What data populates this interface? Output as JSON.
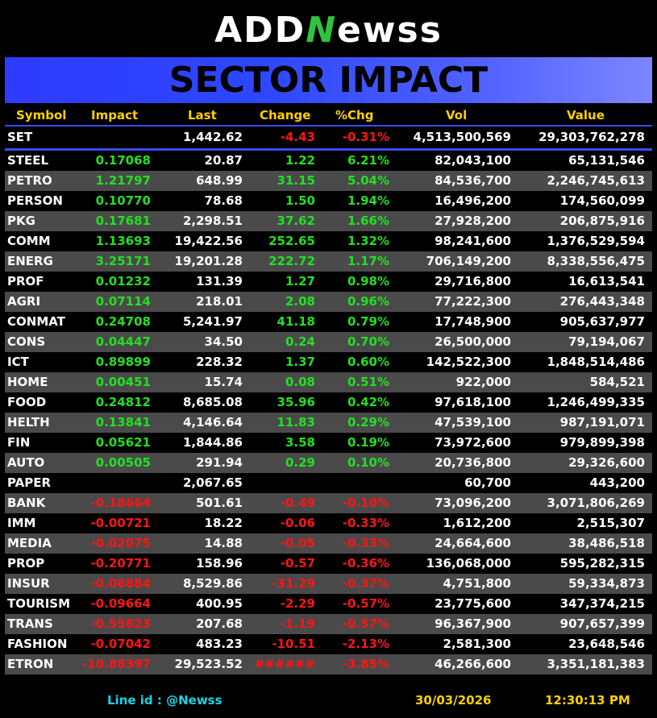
{
  "logo": {
    "part1": "ADD",
    "part2": "N",
    "part3": "ewss"
  },
  "banner": {
    "title": "SECTOR IMPACT"
  },
  "headers": {
    "symbol": "Symbol",
    "impact": "Impact",
    "last": "Last",
    "change": "Change",
    "pct": "%Chg",
    "vol": "Vol",
    "value": "Value"
  },
  "set_row": {
    "symbol": "SET",
    "impact": "",
    "last": "1,442.62",
    "change": "-4.43",
    "pct": "-0.31%",
    "vol": "4,513,500,569",
    "value": "29,303,762,278",
    "trend": "neg"
  },
  "rows": [
    {
      "symbol": "STEEL",
      "impact": "0.17068",
      "last": "20.87",
      "change": "1.22",
      "pct": "6.21%",
      "vol": "82,043,100",
      "value": "65,131,546",
      "trend": "pos"
    },
    {
      "symbol": "PETRO",
      "impact": "1.21797",
      "last": "648.99",
      "change": "31.15",
      "pct": "5.04%",
      "vol": "84,536,700",
      "value": "2,246,745,613",
      "trend": "pos"
    },
    {
      "symbol": "PERSON",
      "impact": "0.10770",
      "last": "78.68",
      "change": "1.50",
      "pct": "1.94%",
      "vol": "16,496,200",
      "value": "174,560,099",
      "trend": "pos"
    },
    {
      "symbol": "PKG",
      "impact": "0.17681",
      "last": "2,298.51",
      "change": "37.62",
      "pct": "1.66%",
      "vol": "27,928,200",
      "value": "206,875,916",
      "trend": "pos"
    },
    {
      "symbol": "COMM",
      "impact": "1.13693",
      "last": "19,422.56",
      "change": "252.65",
      "pct": "1.32%",
      "vol": "98,241,600",
      "value": "1,376,529,594",
      "trend": "pos"
    },
    {
      "symbol": "ENERG",
      "impact": "3.25171",
      "last": "19,201.28",
      "change": "222.72",
      "pct": "1.17%",
      "vol": "706,149,200",
      "value": "8,338,556,475",
      "trend": "pos"
    },
    {
      "symbol": "PROF",
      "impact": "0.01232",
      "last": "131.39",
      "change": "1.27",
      "pct": "0.98%",
      "vol": "29,716,800",
      "value": "16,613,541",
      "trend": "pos"
    },
    {
      "symbol": "AGRI",
      "impact": "0.07114",
      "last": "218.01",
      "change": "2.08",
      "pct": "0.96%",
      "vol": "77,222,300",
      "value": "276,443,348",
      "trend": "pos"
    },
    {
      "symbol": "CONMAT",
      "impact": "0.24708",
      "last": "5,241.97",
      "change": "41.18",
      "pct": "0.79%",
      "vol": "17,748,900",
      "value": "905,637,977",
      "trend": "pos"
    },
    {
      "symbol": "CONS",
      "impact": "0.04447",
      "last": "34.50",
      "change": "0.24",
      "pct": "0.70%",
      "vol": "26,500,000",
      "value": "79,194,067",
      "trend": "pos"
    },
    {
      "symbol": "ICT",
      "impact": "0.89899",
      "last": "228.32",
      "change": "1.37",
      "pct": "0.60%",
      "vol": "142,522,300",
      "value": "1,848,514,486",
      "trend": "pos"
    },
    {
      "symbol": "HOME",
      "impact": "0.00451",
      "last": "15.74",
      "change": "0.08",
      "pct": "0.51%",
      "vol": "922,000",
      "value": "584,521",
      "trend": "pos"
    },
    {
      "symbol": "FOOD",
      "impact": "0.24812",
      "last": "8,685.08",
      "change": "35.96",
      "pct": "0.42%",
      "vol": "97,618,100",
      "value": "1,246,499,335",
      "trend": "pos"
    },
    {
      "symbol": "HELTH",
      "impact": "0.13841",
      "last": "4,146.64",
      "change": "11.83",
      "pct": "0.29%",
      "vol": "47,539,100",
      "value": "987,191,071",
      "trend": "pos"
    },
    {
      "symbol": "FIN",
      "impact": "0.05621",
      "last": "1,844.86",
      "change": "3.58",
      "pct": "0.19%",
      "vol": "73,972,600",
      "value": "979,899,398",
      "trend": "pos"
    },
    {
      "symbol": "AUTO",
      "impact": "0.00505",
      "last": "291.94",
      "change": "0.29",
      "pct": "0.10%",
      "vol": "20,736,800",
      "value": "29,326,600",
      "trend": "pos"
    },
    {
      "symbol": "PAPER",
      "impact": "",
      "last": "2,067.65",
      "change": "",
      "pct": "",
      "vol": "60,700",
      "value": "443,200",
      "trend": "flat"
    },
    {
      "symbol": "BANK",
      "impact": "-0.18664",
      "last": "501.61",
      "change": "-0.49",
      "pct": "-0.10%",
      "vol": "73,096,200",
      "value": "3,071,806,269",
      "trend": "neg"
    },
    {
      "symbol": "IMM",
      "impact": "-0.00721",
      "last": "18.22",
      "change": "-0.06",
      "pct": "-0.33%",
      "vol": "1,612,200",
      "value": "2,515,307",
      "trend": "neg"
    },
    {
      "symbol": "MEDIA",
      "impact": "-0.02075",
      "last": "14.88",
      "change": "-0.05",
      "pct": "-0.33%",
      "vol": "24,664,600",
      "value": "38,486,518",
      "trend": "neg"
    },
    {
      "symbol": "PROP",
      "impact": "-0.20771",
      "last": "158.96",
      "change": "-0.57",
      "pct": "-0.36%",
      "vol": "136,068,000",
      "value": "595,282,315",
      "trend": "neg"
    },
    {
      "symbol": "INSUR",
      "impact": "-0.06884",
      "last": "8,529.86",
      "change": "-31.29",
      "pct": "-0.37%",
      "vol": "4,751,800",
      "value": "59,334,873",
      "trend": "neg"
    },
    {
      "symbol": "TOURISM",
      "impact": "-0.09664",
      "last": "400.95",
      "change": "-2.29",
      "pct": "-0.57%",
      "vol": "23,775,600",
      "value": "347,374,215",
      "trend": "neg"
    },
    {
      "symbol": "TRANS",
      "impact": "-0.55823",
      "last": "207.68",
      "change": "-1.19",
      "pct": "-0.57%",
      "vol": "96,367,900",
      "value": "907,657,399",
      "trend": "neg"
    },
    {
      "symbol": "FASHION",
      "impact": "-0.07042",
      "last": "483.23",
      "change": "-10.51",
      "pct": "-2.13%",
      "vol": "2,581,300",
      "value": "23,648,546",
      "trend": "neg"
    },
    {
      "symbol": "ETRON",
      "impact": "-10.88397",
      "last": "29,523.52",
      "change": "######",
      "pct": "-3.85%",
      "vol": "46,266,600",
      "value": "3,351,181,383",
      "trend": "neg"
    }
  ],
  "footer": {
    "line_id": "Line id  : @Newss",
    "date": "30/03/2026",
    "time": "12:30:13 PM"
  },
  "colors": {
    "positive": "#21e021",
    "negative": "#ff1515",
    "header": "#ffd000",
    "banner": "#2f3bff",
    "alt_row": "#4a4a4a"
  }
}
